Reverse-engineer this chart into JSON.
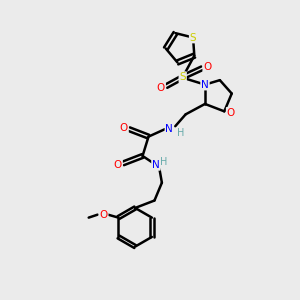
{
  "background_color": "#ebebeb",
  "line_color": "#000000",
  "bond_width": 1.8,
  "atom_colors": {
    "N": "#0000ff",
    "O": "#ff0000",
    "S": "#cccc00",
    "H": "#66aaaa",
    "C": "#000000"
  },
  "title": "",
  "figsize": [
    3.0,
    3.0
  ],
  "dpi": 100,
  "xlim": [
    0,
    10
  ],
  "ylim": [
    0,
    10
  ]
}
